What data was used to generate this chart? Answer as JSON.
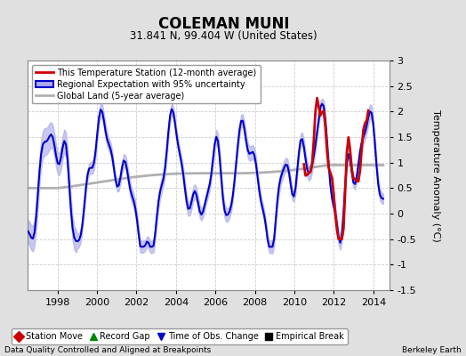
{
  "title": "COLEMAN MUNI",
  "subtitle": "31.841 N, 99.404 W (United States)",
  "ylabel": "Temperature Anomaly (°C)",
  "bottom_left": "Data Quality Controlled and Aligned at Breakpoints",
  "bottom_right": "Berkeley Earth",
  "xlim": [
    1996.5,
    2014.8
  ],
  "ylim": [
    -1.5,
    3.0
  ],
  "yticks": [
    -1.5,
    -1.0,
    -0.5,
    0.0,
    0.5,
    1.0,
    1.5,
    2.0,
    2.5,
    3.0
  ],
  "xticks": [
    1998,
    2000,
    2002,
    2004,
    2006,
    2008,
    2010,
    2012,
    2014
  ],
  "bg_color": "#e0e0e0",
  "plot_bg_color": "#ffffff",
  "grid_color": "#cccccc",
  "regional_color": "#0000cc",
  "regional_fill_color": "#aaaaee",
  "station_color": "#cc0000",
  "global_color": "#b0b0b0",
  "legend1_items": [
    {
      "label": "This Temperature Station (12-month average)",
      "color": "#cc0000"
    },
    {
      "label": "Regional Expectation with 95% uncertainty",
      "color": "#0000cc"
    },
    {
      "label": "Global Land (5-year average)",
      "color": "#b0b0b0"
    }
  ],
  "legend2_items": [
    {
      "label": "Station Move",
      "color": "#cc0000",
      "marker": "D"
    },
    {
      "label": "Record Gap",
      "color": "#008800",
      "marker": "^"
    },
    {
      "label": "Time of Obs. Change",
      "color": "#0000cc",
      "marker": "v"
    },
    {
      "label": "Empirical Break",
      "color": "#000000",
      "marker": "s"
    }
  ]
}
